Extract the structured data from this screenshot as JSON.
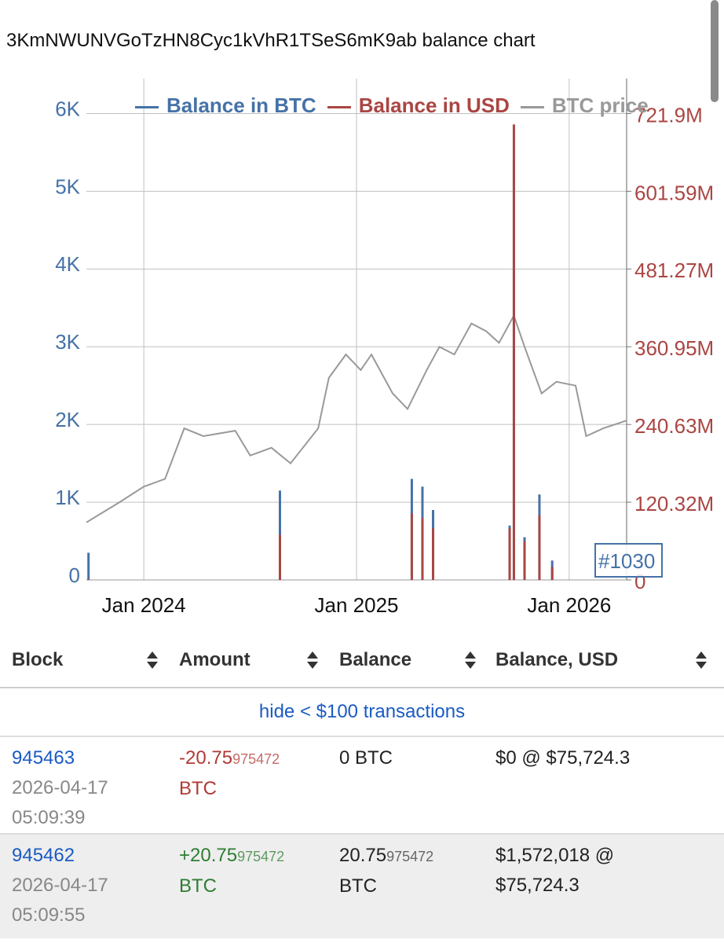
{
  "title": "3KmNWUNVGoTzHN8Cyc1kVhR1TSeS6mK9ab balance chart",
  "chart": {
    "type": "line",
    "xlim": [
      2023.73,
      2026.27
    ],
    "xticks": [
      {
        "value": 2024,
        "label": "Jan 2024"
      },
      {
        "value": 2025,
        "label": "Jan 2025"
      },
      {
        "value": 2026,
        "label": "Jan 2026"
      }
    ],
    "ylim": [
      0,
      6450
    ],
    "yticks": [
      0,
      {
        "value": 1000,
        "label": "1K"
      },
      {
        "value": 2000,
        "label": "2K"
      },
      {
        "value": 3000,
        "label": "3K"
      },
      {
        "value": 4000,
        "label": "4K"
      },
      {
        "value": 5000,
        "label": "5K"
      },
      {
        "value": 6000,
        "label": "6K"
      }
    ],
    "y2lim": [
      0,
      776000000
    ],
    "y2ticks": [
      0,
      {
        "value": 120320000,
        "label": "120.32M"
      },
      {
        "value": 240630000,
        "label": "240.63M"
      },
      {
        "value": 360950000,
        "label": "360.95M"
      },
      {
        "value": 481270000,
        "label": "481.27M"
      },
      {
        "value": 601590000,
        "label": "601.59M"
      },
      {
        "value": 721900000,
        "label": "721.9M"
      }
    ],
    "grid": true,
    "tooltip": "#1030",
    "series": [
      {
        "name": "Balance in BTC",
        "color": "#4572a7",
        "type": "spike",
        "x": [
          2023.74,
          2024.64,
          2025.26,
          2025.31,
          2025.36,
          2025.72,
          2025.74,
          2025.79,
          2025.86,
          2025.92
        ],
        "values": [
          350,
          1150,
          1300,
          1200,
          900,
          700,
          5400,
          550,
          1100,
          250
        ]
      },
      {
        "name": "Balance in USD",
        "color": "#aa4643",
        "type": "spike",
        "axis": "y2",
        "x": [
          2023.74,
          2024.64,
          2025.26,
          2025.31,
          2025.36,
          2025.72,
          2025.74,
          2025.79,
          2025.86,
          2025.92
        ],
        "values": [
          1000000,
          70000000,
          103000000,
          96000000,
          80000000,
          80000000,
          705000000,
          60000000,
          100000000,
          20000000
        ]
      },
      {
        "name": "BTC price",
        "color": "#999999",
        "type": "line",
        "x": [
          2023.73,
          2023.88,
          2024.0,
          2024.1,
          2024.19,
          2024.28,
          2024.43,
          2024.5,
          2024.6,
          2024.69,
          2024.82,
          2024.87,
          2024.95,
          2025.02,
          2025.07,
          2025.17,
          2025.24,
          2025.33,
          2025.39,
          2025.46,
          2025.54,
          2025.61,
          2025.67,
          2025.74,
          2025.79,
          2025.87,
          2025.94,
          2026.03,
          2026.08,
          2026.16,
          2026.27
        ],
        "values": [
          740,
          990,
          1200,
          1300,
          1950,
          1850,
          1920,
          1600,
          1700,
          1500,
          1950,
          2600,
          2900,
          2700,
          2900,
          2400,
          2200,
          2700,
          3000,
          2900,
          3300,
          3200,
          3050,
          3400,
          3000,
          2400,
          2550,
          2500,
          1850,
          1950,
          2050
        ]
      }
    ]
  },
  "table": {
    "columns": [
      "Block",
      "Amount",
      "Balance",
      "Balance, USD"
    ],
    "filter": "hide < $100 transactions",
    "rows": [
      {
        "block": "945463",
        "date": "2026-04-17",
        "time": "05:09:39",
        "sign": "neg",
        "amount": "-20.75",
        "amount_digits": "975472",
        "amount_unit": "BTC",
        "balance": [
          "0 BTC"
        ],
        "balance_usd": "$0 @ $75,724.3"
      },
      {
        "block": "945462",
        "date": "2026-04-17",
        "time": "05:09:55",
        "sign": "pos",
        "amount": "+20.75",
        "amount_digits": "975472",
        "amount_unit": "BTC",
        "balance": [
          "20.75",
          "975472",
          "BTC"
        ],
        "balance_usd": "$1,572,018 @ $75,724.3"
      }
    ]
  }
}
